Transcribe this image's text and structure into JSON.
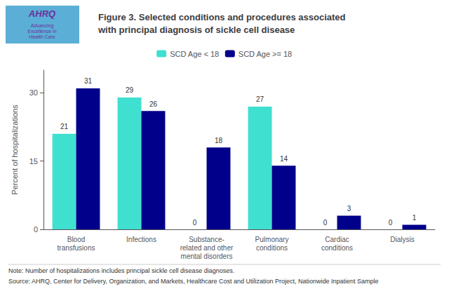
{
  "chart_data": {
    "type": "bar",
    "title": "Figure 3. Selected conditions and procedures associated\nwith principal diagnosis of sickle cell disease",
    "categories": [
      "Blood\ntransfusions",
      "Infections",
      "Substance-\nrelated and other\nmental disorders",
      "Pulmonary\nconditions",
      "Cardiac\nconditions",
      "Dialysis"
    ],
    "series": [
      {
        "name": "SCD Age < 18",
        "color": "#40E0D0",
        "values": [
          21,
          29,
          0,
          27,
          0,
          0
        ]
      },
      {
        "name": "SCD Age >= 18",
        "color": "#00008B",
        "values": [
          31,
          26,
          18,
          14,
          3,
          1
        ]
      }
    ],
    "ylabel": "Percent of hospitalizations",
    "ylim": [
      0,
      35
    ],
    "yticks": [
      0,
      15,
      30
    ],
    "legend": "top",
    "grid": false,
    "data_labels": true,
    "annotations": [
      "AHRQ",
      "Advancing\nExcellence in\nHealth Care",
      "Note: Number of hospitalizations includes principal sickle cell disease diagnoses.",
      "Source: AHRQ, Center for Delivery, Organization, and Markets, Healthcare Cost and Utilization Project, Nationwide Inpatient Sample"
    ]
  }
}
